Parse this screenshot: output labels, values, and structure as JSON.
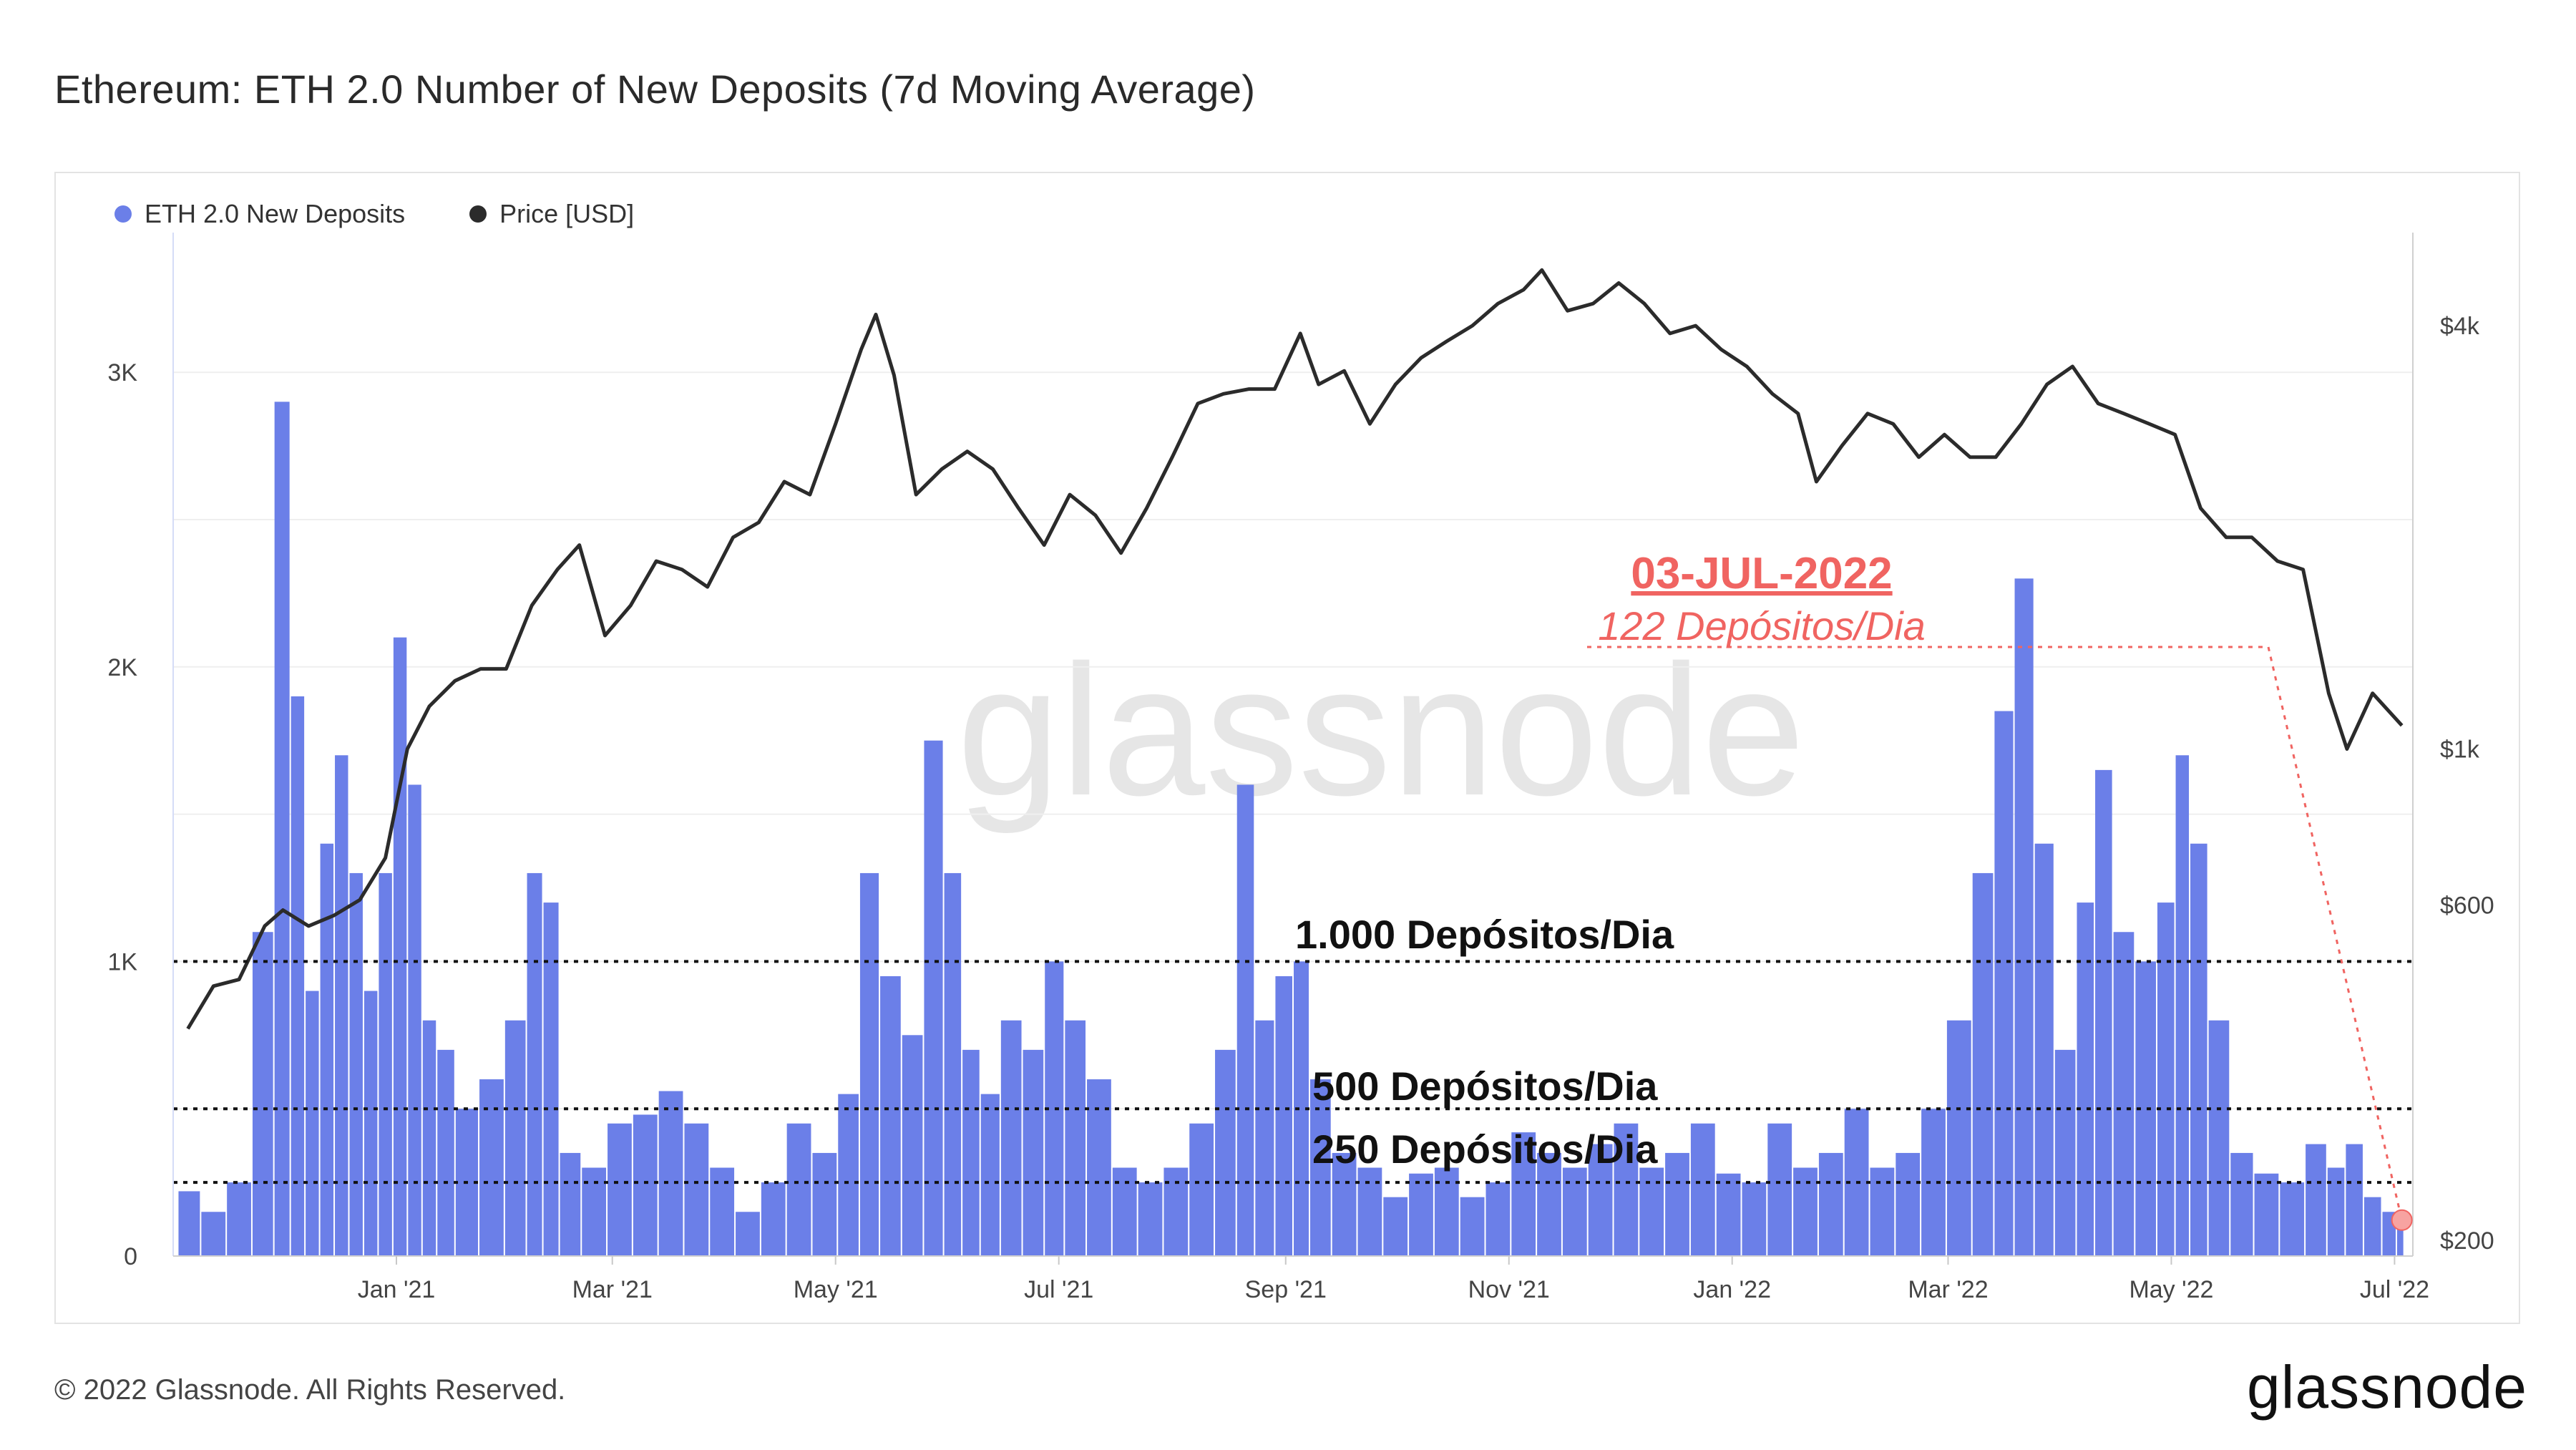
{
  "header": {
    "title": "Ethereum: ETH 2.0 Number of New Deposits (7d Moving Average)"
  },
  "legend": {
    "items": [
      {
        "label": "ETH 2.0 New Deposits",
        "color": "#6b7fe8"
      },
      {
        "label": "Price [USD]",
        "color": "#2b2b2b"
      }
    ]
  },
  "watermark": "glassnode",
  "footer": {
    "copyright": "© 2022 Glassnode. All Rights Reserved.",
    "logo": "glassnode"
  },
  "annotations": {
    "date_label": "03-JUL-2022",
    "deposits_label": "122 Depósitos/Dia",
    "line_1000": "1.000 Depósitos/Dia",
    "line_500": "500 Depósitos/Dia",
    "line_250": "250 Depósitos/Dia"
  },
  "chart_data": {
    "type": "bar",
    "title": "Ethereum: ETH 2.0 Number of New Deposits (7d Moving Average)",
    "x_ticks": [
      "Jan '21",
      "Mar '21",
      "May '21",
      "Jul '21",
      "Sep '21",
      "Nov '21",
      "Jan '22",
      "Mar '22",
      "May '22",
      "Jul '22"
    ],
    "y_left": {
      "ticks": [
        "0",
        "1K",
        "2K",
        "3K"
      ],
      "ylim": [
        0,
        3450
      ]
    },
    "y_right": {
      "ticks": [
        "$200",
        "$600",
        "$1k",
        "$4k"
      ],
      "scale": "log",
      "ylim": [
        190,
        5300
      ]
    },
    "reference_lines": [
      1000,
      500,
      250
    ],
    "highlight": {
      "date": "03-JUL-2022",
      "value": 122
    },
    "series": [
      {
        "name": "ETH 2.0 New Deposits",
        "type": "bar",
        "axis": "left",
        "points": [
          [
            "2020-11-05",
            220
          ],
          [
            "2020-11-12",
            150
          ],
          [
            "2020-11-19",
            250
          ],
          [
            "2020-11-26",
            1100
          ],
          [
            "2020-12-01",
            2900
          ],
          [
            "2020-12-05",
            1900
          ],
          [
            "2020-12-09",
            900
          ],
          [
            "2020-12-13",
            1400
          ],
          [
            "2020-12-17",
            1700
          ],
          [
            "2020-12-21",
            1300
          ],
          [
            "2020-12-25",
            900
          ],
          [
            "2020-12-29",
            1300
          ],
          [
            "2021-01-02",
            2100
          ],
          [
            "2021-01-06",
            1600
          ],
          [
            "2021-01-10",
            800
          ],
          [
            "2021-01-14",
            700
          ],
          [
            "2021-01-20",
            500
          ],
          [
            "2021-01-27",
            600
          ],
          [
            "2021-02-03",
            800
          ],
          [
            "2021-02-08",
            1300
          ],
          [
            "2021-02-12",
            1200
          ],
          [
            "2021-02-17",
            350
          ],
          [
            "2021-02-24",
            300
          ],
          [
            "2021-03-03",
            450
          ],
          [
            "2021-03-10",
            480
          ],
          [
            "2021-03-17",
            560
          ],
          [
            "2021-03-24",
            450
          ],
          [
            "2021-03-31",
            300
          ],
          [
            "2021-04-07",
            150
          ],
          [
            "2021-04-14",
            250
          ],
          [
            "2021-04-21",
            450
          ],
          [
            "2021-04-28",
            350
          ],
          [
            "2021-05-05",
            550
          ],
          [
            "2021-05-10",
            1300
          ],
          [
            "2021-05-16",
            950
          ],
          [
            "2021-05-22",
            750
          ],
          [
            "2021-05-28",
            1750
          ],
          [
            "2021-06-02",
            1300
          ],
          [
            "2021-06-07",
            700
          ],
          [
            "2021-06-12",
            550
          ],
          [
            "2021-06-18",
            800
          ],
          [
            "2021-06-24",
            700
          ],
          [
            "2021-06-30",
            1000
          ],
          [
            "2021-07-05",
            800
          ],
          [
            "2021-07-12",
            600
          ],
          [
            "2021-07-19",
            300
          ],
          [
            "2021-07-26",
            250
          ],
          [
            "2021-08-02",
            300
          ],
          [
            "2021-08-09",
            450
          ],
          [
            "2021-08-16",
            700
          ],
          [
            "2021-08-21",
            1600
          ],
          [
            "2021-08-26",
            800
          ],
          [
            "2021-09-01",
            950
          ],
          [
            "2021-09-05",
            1000
          ],
          [
            "2021-09-10",
            600
          ],
          [
            "2021-09-17",
            350
          ],
          [
            "2021-09-24",
            300
          ],
          [
            "2021-10-01",
            200
          ],
          [
            "2021-10-08",
            280
          ],
          [
            "2021-10-15",
            300
          ],
          [
            "2021-10-22",
            200
          ],
          [
            "2021-10-29",
            250
          ],
          [
            "2021-11-05",
            420
          ],
          [
            "2021-11-12",
            350
          ],
          [
            "2021-11-19",
            300
          ],
          [
            "2021-11-26",
            380
          ],
          [
            "2021-12-03",
            450
          ],
          [
            "2021-12-10",
            300
          ],
          [
            "2021-12-17",
            350
          ],
          [
            "2021-12-24",
            450
          ],
          [
            "2021-12-31",
            280
          ],
          [
            "2022-01-07",
            250
          ],
          [
            "2022-01-14",
            450
          ],
          [
            "2022-01-21",
            300
          ],
          [
            "2022-01-28",
            350
          ],
          [
            "2022-02-04",
            500
          ],
          [
            "2022-02-11",
            300
          ],
          [
            "2022-02-18",
            350
          ],
          [
            "2022-02-25",
            500
          ],
          [
            "2022-03-04",
            800
          ],
          [
            "2022-03-11",
            1300
          ],
          [
            "2022-03-16",
            1850
          ],
          [
            "2022-03-22",
            2300
          ],
          [
            "2022-03-27",
            1400
          ],
          [
            "2022-04-02",
            700
          ],
          [
            "2022-04-08",
            1200
          ],
          [
            "2022-04-12",
            1650
          ],
          [
            "2022-04-18",
            1100
          ],
          [
            "2022-04-24",
            1000
          ],
          [
            "2022-04-30",
            1200
          ],
          [
            "2022-05-04",
            1700
          ],
          [
            "2022-05-08",
            1400
          ],
          [
            "2022-05-14",
            800
          ],
          [
            "2022-05-20",
            350
          ],
          [
            "2022-05-27",
            280
          ],
          [
            "2022-06-03",
            250
          ],
          [
            "2022-06-10",
            380
          ],
          [
            "2022-06-15",
            300
          ],
          [
            "2022-06-20",
            380
          ],
          [
            "2022-06-25",
            200
          ],
          [
            "2022-06-30",
            150
          ],
          [
            "2022-07-03",
            122
          ]
        ]
      },
      {
        "name": "Price [USD]",
        "type": "line",
        "axis": "right",
        "points": [
          [
            "2020-11-05",
            400
          ],
          [
            "2020-11-12",
            460
          ],
          [
            "2020-11-19",
            470
          ],
          [
            "2020-11-26",
            560
          ],
          [
            "2020-12-01",
            590
          ],
          [
            "2020-12-08",
            560
          ],
          [
            "2020-12-15",
            580
          ],
          [
            "2020-12-22",
            610
          ],
          [
            "2020-12-29",
            700
          ],
          [
            "2021-01-04",
            1000
          ],
          [
            "2021-01-10",
            1150
          ],
          [
            "2021-01-17",
            1250
          ],
          [
            "2021-01-24",
            1300
          ],
          [
            "2021-01-31",
            1300
          ],
          [
            "2021-02-07",
            1600
          ],
          [
            "2021-02-14",
            1800
          ],
          [
            "2021-02-20",
            1950
          ],
          [
            "2021-02-27",
            1450
          ],
          [
            "2021-03-06",
            1600
          ],
          [
            "2021-03-13",
            1850
          ],
          [
            "2021-03-20",
            1800
          ],
          [
            "2021-03-27",
            1700
          ],
          [
            "2021-04-03",
            2000
          ],
          [
            "2021-04-10",
            2100
          ],
          [
            "2021-04-17",
            2400
          ],
          [
            "2021-04-24",
            2300
          ],
          [
            "2021-05-01",
            2900
          ],
          [
            "2021-05-08",
            3700
          ],
          [
            "2021-05-12",
            4150
          ],
          [
            "2021-05-17",
            3400
          ],
          [
            "2021-05-23",
            2300
          ],
          [
            "2021-05-30",
            2500
          ],
          [
            "2021-06-06",
            2650
          ],
          [
            "2021-06-13",
            2500
          ],
          [
            "2021-06-20",
            2200
          ],
          [
            "2021-06-27",
            1950
          ],
          [
            "2021-07-04",
            2300
          ],
          [
            "2021-07-11",
            2150
          ],
          [
            "2021-07-18",
            1900
          ],
          [
            "2021-07-25",
            2200
          ],
          [
            "2021-08-01",
            2600
          ],
          [
            "2021-08-08",
            3100
          ],
          [
            "2021-08-15",
            3200
          ],
          [
            "2021-08-22",
            3250
          ],
          [
            "2021-08-29",
            3250
          ],
          [
            "2021-09-05",
            3900
          ],
          [
            "2021-09-10",
            3300
          ],
          [
            "2021-09-17",
            3450
          ],
          [
            "2021-09-24",
            2900
          ],
          [
            "2021-10-01",
            3300
          ],
          [
            "2021-10-08",
            3600
          ],
          [
            "2021-10-15",
            3800
          ],
          [
            "2021-10-22",
            4000
          ],
          [
            "2021-10-29",
            4300
          ],
          [
            "2021-11-05",
            4500
          ],
          [
            "2021-11-10",
            4800
          ],
          [
            "2021-11-17",
            4200
          ],
          [
            "2021-11-24",
            4300
          ],
          [
            "2021-12-01",
            4600
          ],
          [
            "2021-12-08",
            4300
          ],
          [
            "2021-12-15",
            3900
          ],
          [
            "2021-12-22",
            4000
          ],
          [
            "2021-12-29",
            3700
          ],
          [
            "2022-01-05",
            3500
          ],
          [
            "2022-01-12",
            3200
          ],
          [
            "2022-01-19",
            3000
          ],
          [
            "2022-01-24",
            2400
          ],
          [
            "2022-01-31",
            2700
          ],
          [
            "2022-02-07",
            3000
          ],
          [
            "2022-02-14",
            2900
          ],
          [
            "2022-02-21",
            2600
          ],
          [
            "2022-02-28",
            2800
          ],
          [
            "2022-03-07",
            2600
          ],
          [
            "2022-03-14",
            2600
          ],
          [
            "2022-03-21",
            2900
          ],
          [
            "2022-03-28",
            3300
          ],
          [
            "2022-04-04",
            3500
          ],
          [
            "2022-04-11",
            3100
          ],
          [
            "2022-04-18",
            3000
          ],
          [
            "2022-04-25",
            2900
          ],
          [
            "2022-05-02",
            2800
          ],
          [
            "2022-05-09",
            2200
          ],
          [
            "2022-05-16",
            2000
          ],
          [
            "2022-05-23",
            2000
          ],
          [
            "2022-05-30",
            1850
          ],
          [
            "2022-06-06",
            1800
          ],
          [
            "2022-06-13",
            1200
          ],
          [
            "2022-06-18",
            1000
          ],
          [
            "2022-06-25",
            1200
          ],
          [
            "2022-07-03",
            1080
          ]
        ]
      }
    ]
  }
}
